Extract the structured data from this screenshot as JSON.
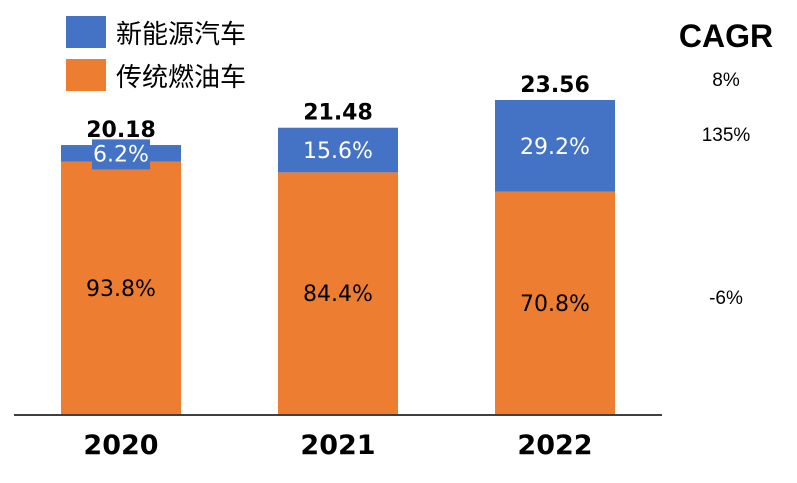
{
  "chart_data": {
    "type": "bar",
    "stacked": true,
    "categories": [
      "2020",
      "2021",
      "2022"
    ],
    "totals": [
      20.18,
      21.48,
      23.56
    ],
    "series": [
      {
        "name": "传统燃油车",
        "color": "#ED7D31",
        "share_pct": [
          93.8,
          84.4,
          70.8
        ],
        "labels": [
          "93.8%",
          "84.4%",
          "70.8%"
        ]
      },
      {
        "name": "新能源汽车",
        "color": "#4472C4",
        "share_pct": [
          6.2,
          15.6,
          29.2
        ],
        "labels": [
          "6.2%",
          "15.6%",
          "29.2%"
        ]
      }
    ],
    "total_labels": [
      "20.18",
      "21.48",
      "23.56"
    ],
    "ylim": [
      0,
      23.56
    ],
    "grid": false,
    "legend_position": "top-left",
    "cagr": {
      "title": "CAGR",
      "total": "8%",
      "new_energy": "135%",
      "traditional": "-6%"
    }
  }
}
